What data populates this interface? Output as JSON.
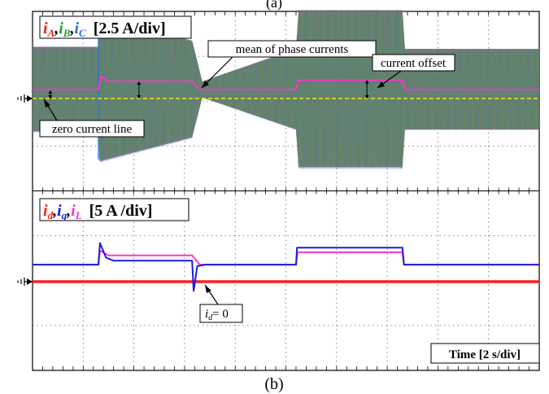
{
  "figure": {
    "top_caption": "(a)",
    "bottom_caption": "(b)"
  },
  "colors": {
    "phase_a": "#e8221b",
    "phase_b": "#2e9e3a",
    "phase_c": "#2a6fd6",
    "phase_blend": "#8e7050",
    "mean": "#ff33cc",
    "offset_line": "#ffe21a",
    "id": "#ff1f1f",
    "iq": "#1d1dd6",
    "iL": "#ff33cc",
    "grid": "#666666"
  },
  "chart_data": [
    {
      "type": "line",
      "title": "",
      "legend": [
        {
          "name": "i",
          "sub": "A",
          "color": "#e8221b"
        },
        {
          "name": "i",
          "sub": "B",
          "color": "#2e9e3a"
        },
        {
          "name": "i",
          "sub": "C",
          "color": "#2a6fd6"
        }
      ],
      "scale_label": "[2.5 A/div]",
      "x_divisions": 10,
      "y_divisions": 4,
      "x_unit_per_div": "2 s",
      "series": [
        {
          "name": "phase currents envelope (amplitude, div)",
          "x": [
            0,
            1.3,
            1.32,
            3.15,
            3.35,
            5.2,
            5.25,
            7.3,
            7.35,
            10
          ],
          "values": [
            1.05,
            1.05,
            1.8,
            1.2,
            0.2,
            1.0,
            1.95,
            1.95,
            1.0,
            1.0
          ]
        },
        {
          "name": "mean of phase currents (div)",
          "x": [
            0,
            1.3,
            1.35,
            1.5,
            3.15,
            3.3,
            5.2,
            5.25,
            7.3,
            7.35,
            10
          ],
          "values": [
            0.22,
            0.22,
            0.55,
            0.42,
            0.42,
            0.22,
            0.22,
            0.45,
            0.45,
            0.22,
            0.22
          ]
        },
        {
          "name": "zero current line (div)",
          "x": [
            0,
            10
          ],
          "values": [
            0,
            0
          ]
        }
      ],
      "annotations": [
        "mean of phase currents",
        "current offset",
        "zero current line"
      ]
    },
    {
      "type": "line",
      "title": "",
      "legend": [
        {
          "name": "i",
          "sub": "d",
          "color": "#ff1f1f"
        },
        {
          "name": "i",
          "sub": "q",
          "color": "#1d1dd6"
        },
        {
          "name": "i",
          "sub": "L",
          "color": "#ff33cc"
        }
      ],
      "scale_label": "[5 A /div]",
      "x_divisions": 10,
      "y_divisions": 4,
      "x_unit_per_div": "2 s",
      "series": [
        {
          "name": "i_d (div)",
          "x": [
            0,
            10
          ],
          "values": [
            0,
            0
          ]
        },
        {
          "name": "i_q (div)",
          "x": [
            0,
            1.3,
            1.33,
            1.45,
            1.6,
            3.15,
            3.18,
            3.25,
            3.4,
            5.2,
            5.22,
            7.3,
            7.33,
            10
          ],
          "values": [
            0.55,
            0.55,
            1.25,
            0.78,
            0.68,
            0.68,
            -0.3,
            0.5,
            0.55,
            0.55,
            1.1,
            1.1,
            0.55,
            0.55
          ]
        },
        {
          "name": "i_L (div)",
          "x": [
            0,
            1.3,
            1.33,
            1.5,
            3.15,
            3.3,
            5.2,
            5.23,
            7.3,
            7.33,
            10
          ],
          "values": [
            0.55,
            0.55,
            1.0,
            0.85,
            0.85,
            0.55,
            0.55,
            0.95,
            0.95,
            0.55,
            0.55
          ]
        }
      ],
      "annotations": [
        "i_d = 0",
        "Time [2 s/div]"
      ]
    }
  ],
  "labels": {
    "mean_annot": "mean of phase currents",
    "offset_annot": "current offset",
    "zero_annot": "zero current line",
    "id_zero_main": "i",
    "id_zero_sub": "d",
    "id_zero_rest": "= 0",
    "time_label": "Time [2 s/div]",
    "top_scale": "[2.5 A/div]",
    "bot_scale": "[5 A /div]",
    "comma": ","
  }
}
